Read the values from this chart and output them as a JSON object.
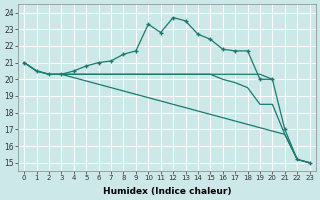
{
  "xlabel": "Humidex (Indice chaleur)",
  "bg_color": "#cce8e8",
  "grid_color": "#ffffff",
  "line_color": "#1a7a6e",
  "xlim": [
    -0.5,
    23.5
  ],
  "ylim": [
    14.5,
    24.5
  ],
  "xticks": [
    0,
    1,
    2,
    3,
    4,
    5,
    6,
    7,
    8,
    9,
    10,
    11,
    12,
    13,
    14,
    15,
    16,
    17,
    18,
    19,
    20,
    21,
    22,
    23
  ],
  "yticks": [
    15,
    16,
    17,
    18,
    19,
    20,
    21,
    22,
    23,
    24
  ],
  "line1_x": [
    0,
    1,
    2,
    3,
    4,
    5,
    6,
    7,
    8,
    9,
    10,
    11,
    12,
    13,
    14,
    15,
    16,
    17,
    18,
    19,
    20,
    21,
    22,
    23
  ],
  "line1_y": [
    21.0,
    20.5,
    20.3,
    20.3,
    20.5,
    20.8,
    21.0,
    21.1,
    21.5,
    21.7,
    23.3,
    22.8,
    23.7,
    23.5,
    22.7,
    22.4,
    21.8,
    21.7,
    21.7,
    20.0,
    20.0,
    17.0,
    15.2,
    15.0
  ],
  "line2_x": [
    0,
    1,
    2,
    3,
    4,
    5,
    6,
    7,
    8,
    9,
    10,
    11,
    12,
    13,
    14,
    15,
    16,
    17,
    18,
    19,
    20
  ],
  "line2_y": [
    21.0,
    20.5,
    20.3,
    20.3,
    20.3,
    20.3,
    20.3,
    20.3,
    20.3,
    20.3,
    20.3,
    20.3,
    20.3,
    20.3,
    20.3,
    20.3,
    20.3,
    20.3,
    20.3,
    20.3,
    20.0
  ],
  "line3_x": [
    0,
    1,
    2,
    3,
    4,
    5,
    6,
    7,
    8,
    9,
    10,
    11,
    12,
    13,
    14,
    15,
    16,
    17,
    18,
    19,
    20,
    21,
    22,
    23
  ],
  "line3_y": [
    21.0,
    20.5,
    20.3,
    20.3,
    20.1,
    19.9,
    19.7,
    19.5,
    19.3,
    19.1,
    18.9,
    18.7,
    18.5,
    18.3,
    18.1,
    17.9,
    17.7,
    17.5,
    17.3,
    17.1,
    16.9,
    16.7,
    15.2,
    15.0
  ],
  "line4_x": [
    3,
    4,
    5,
    6,
    7,
    8,
    9,
    10,
    11,
    12,
    13,
    14,
    15,
    16,
    17,
    18,
    19,
    20,
    21,
    22,
    23
  ],
  "line4_y": [
    20.3,
    20.3,
    20.3,
    20.3,
    20.3,
    20.3,
    20.3,
    20.3,
    20.3,
    20.3,
    20.3,
    20.3,
    20.3,
    20.0,
    19.8,
    19.5,
    18.5,
    18.5,
    16.7,
    15.2,
    15.0
  ]
}
